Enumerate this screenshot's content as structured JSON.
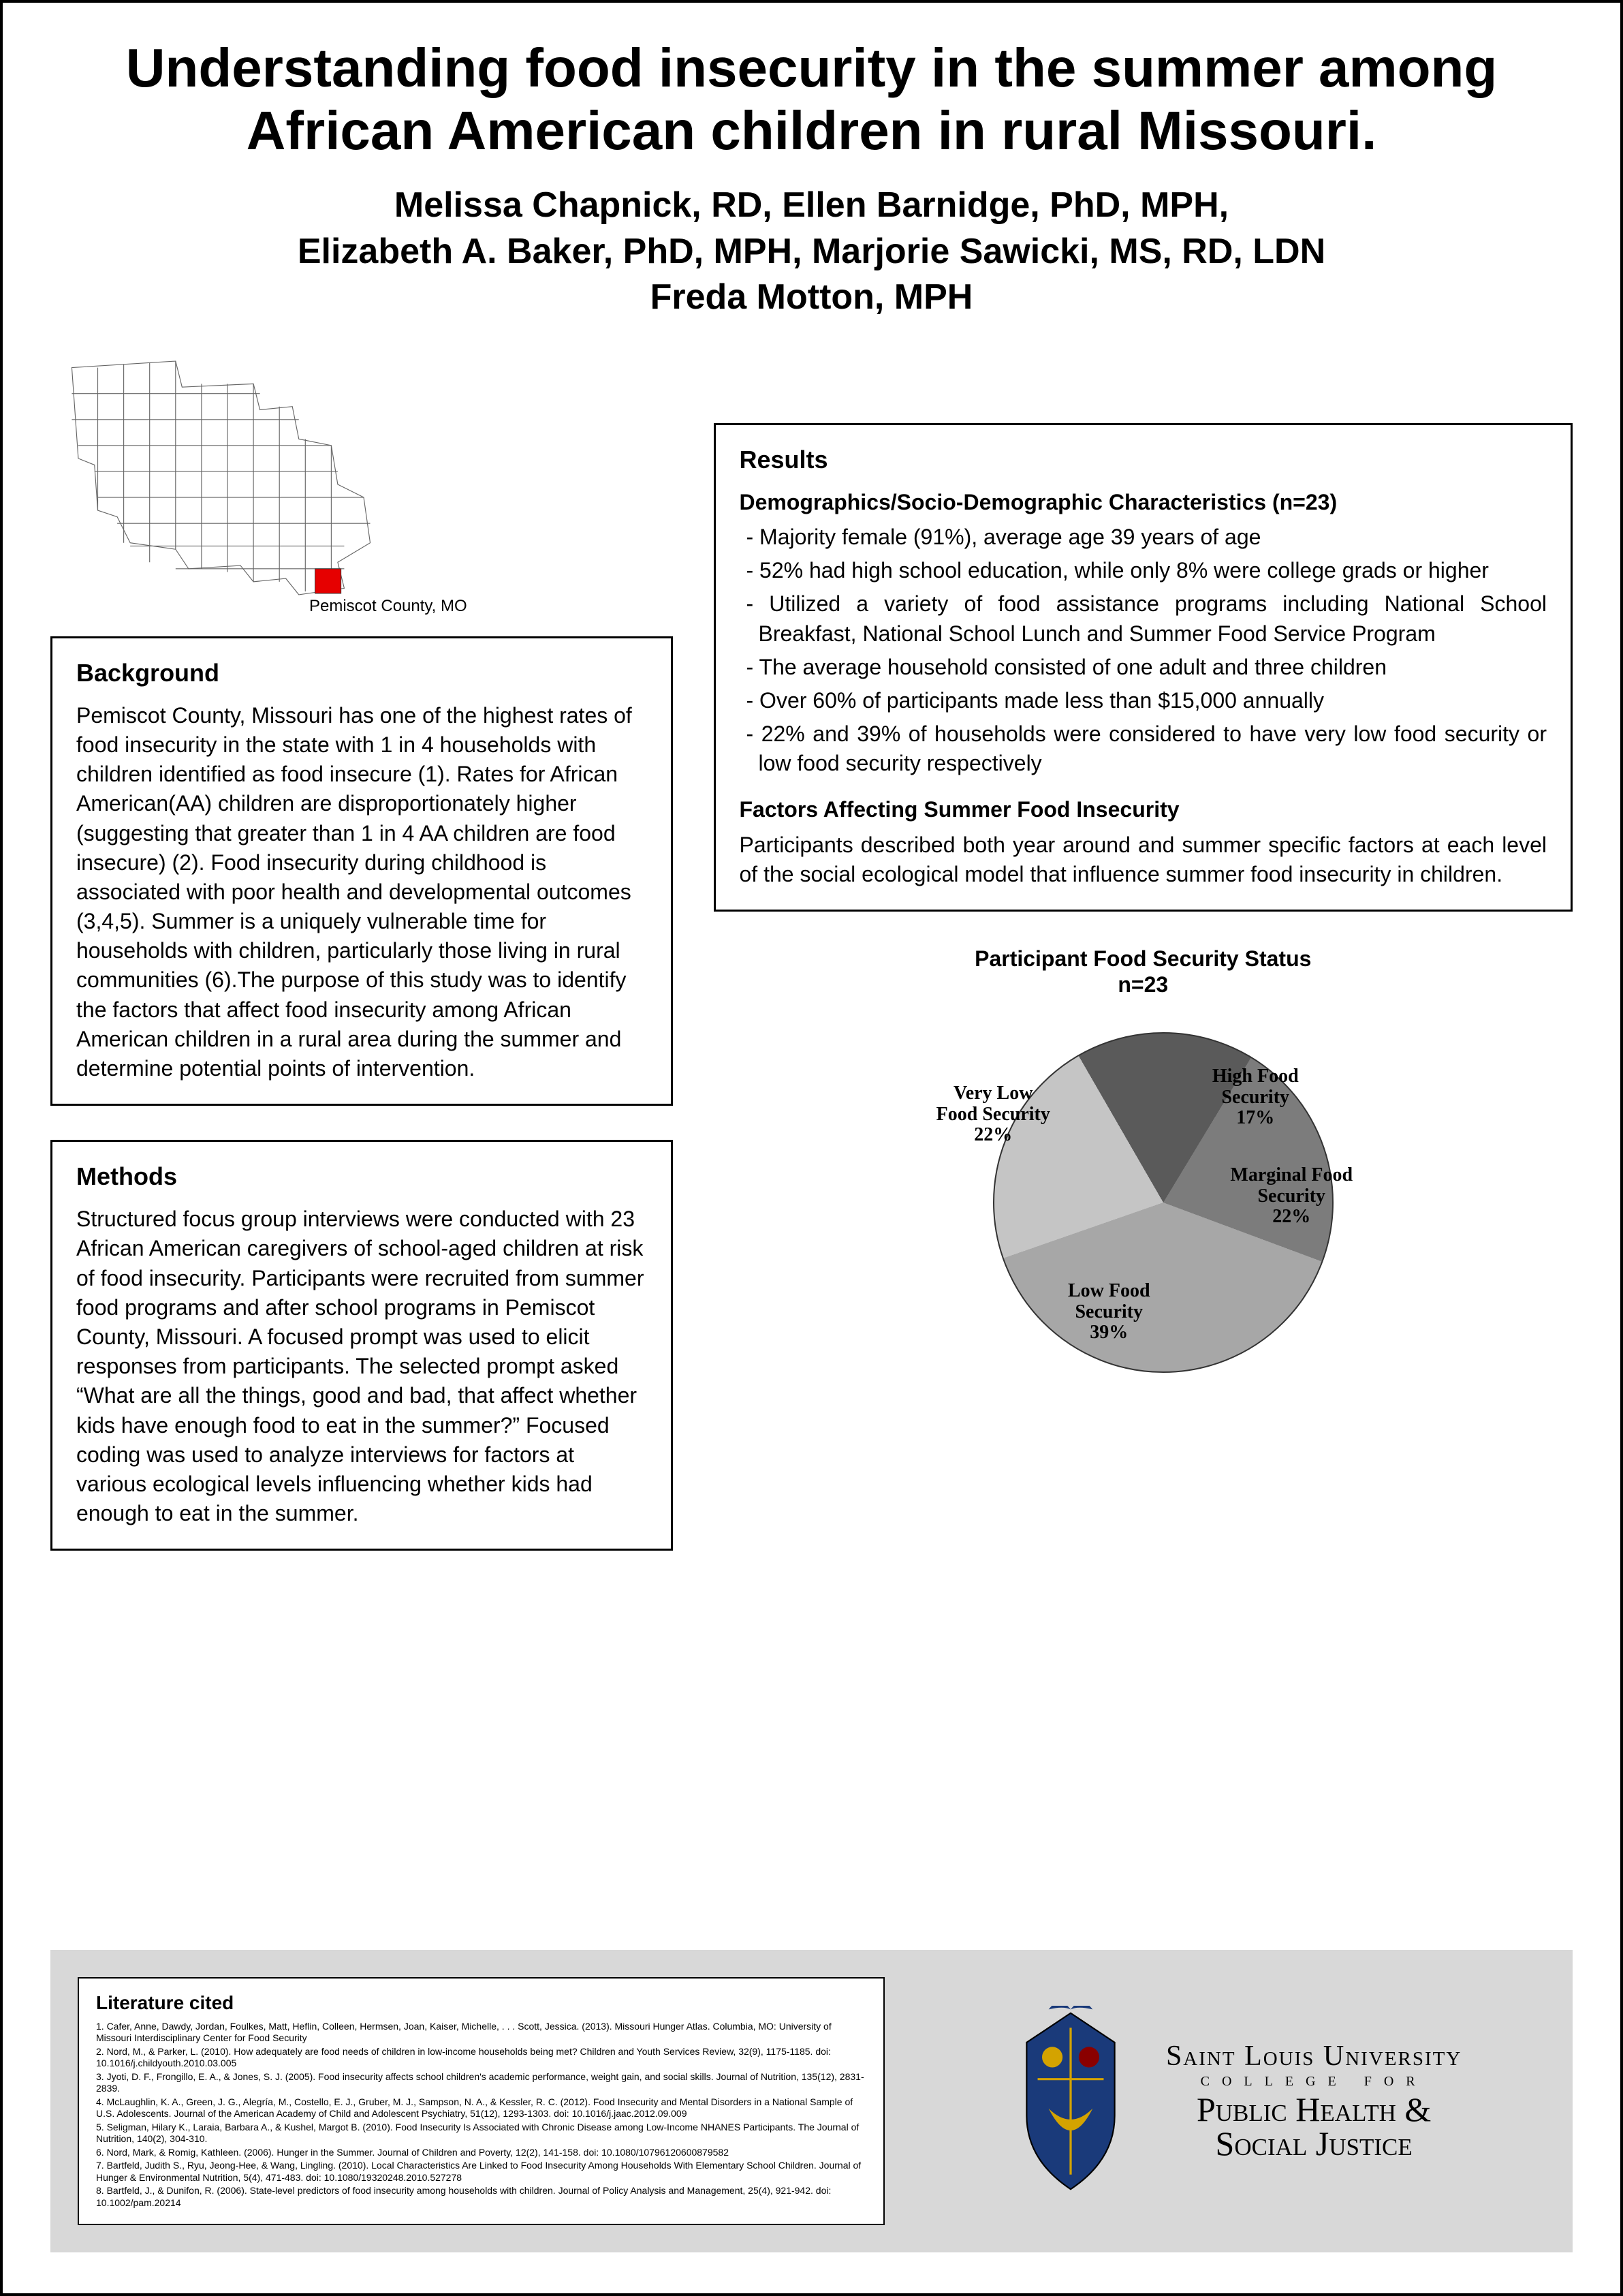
{
  "title_line1": "Understanding food insecurity in the summer among",
  "title_line2": "African American children in rural Missouri.",
  "authors_line1": "Melissa Chapnick, RD, Ellen Barnidge, PhD, MPH,",
  "authors_line2": "Elizabeth A. Baker, PhD, MPH, Marjorie Sawicki, MS, RD, LDN",
  "authors_line3": "Freda Motton, MPH",
  "map_caption": "Pemiscot County, MO",
  "map_highlight_color": "#e60000",
  "background": {
    "heading": "Background",
    "body": "Pemiscot County, Missouri has one of the highest rates of food insecurity in the state with 1 in 4 households with children identified as food insecure (1). Rates for African American(AA) children are disproportionately higher (suggesting that greater than  1 in 4 AA children are food insecure) (2). Food insecurity during childhood is associated with poor health and developmental outcomes (3,4,5). Summer is a uniquely vulnerable time for households with children, particularly those living in rural communities (6).The purpose of this study was to identify the factors that affect food insecurity among African American children in a rural area during the summer and determine potential points of intervention."
  },
  "methods": {
    "heading": "Methods",
    "body": "Structured focus group interviews were conducted with 23 African American caregivers of school-aged children at risk of food insecurity. Participants were recruited from summer food programs and after school programs in Pemiscot County, Missouri. A focused prompt was used to elicit responses from participants. The selected prompt asked “What are all the things, good and bad, that affect whether kids have enough food to eat in the summer?” Focused coding was used to analyze interviews for factors at various ecological levels influencing whether kids had enough to eat in the summer."
  },
  "results": {
    "heading": "Results",
    "demo_heading": "Demographics/Socio-Demographic Characteristics (n=23)",
    "demo_items": [
      "Majority female (91%), average age 39 years of age",
      "52% had high school education, while only 8% were college grads or higher",
      "Utilized a variety of food assistance programs including National School Breakfast, National School Lunch and Summer Food Service Program",
      "The average household  consisted  of one adult and three children",
      "Over 60% of participants made less than $15,000 annually",
      "22% and 39% of households were considered to have very low food security or low food security respectively"
    ],
    "factors_heading": "Factors Affecting Summer Food Insecurity",
    "factors_body": "Participants described both year around and summer specific factors at each level of the social ecological model that influence summer food insecurity in children."
  },
  "pie": {
    "title_line1": "Participant Food Security Status",
    "title_line2": "n=23",
    "background_color": "#ffffff",
    "slices": [
      {
        "label": "High Food Security",
        "pct": "17%",
        "value": 17,
        "color": "#5a5a5a"
      },
      {
        "label": "Marginal Food Security",
        "pct": "22%",
        "value": 22,
        "color": "#7c7c7c"
      },
      {
        "label": "Low Food Security",
        "pct": "39%",
        "value": 39,
        "color": "#a7a7a7"
      },
      {
        "label": "Very Low Food Security",
        "pct": "22%",
        "value": 22,
        "color": "#c5c5c5"
      }
    ]
  },
  "refs": {
    "heading": "Literature cited",
    "items": [
      "1. Cafer, Anne, Dawdy, Jordan, Foulkes, Matt, Heflin, Colleen, Hermsen, Joan, Kaiser, Michelle, . . . Scott, Jessica. (2013). Missouri Hunger Atlas. Columbia, MO: University of Missouri Interdisciplinary Center for Food Security",
      "2. Nord, M., & Parker, L. (2010). How adequately are food needs of children in low-income households being met? Children and Youth Services Review, 32(9), 1175-1185. doi: 10.1016/j.childyouth.2010.03.005",
      "3. Jyoti, D. F., Frongillo, E. A., & Jones, S. J. (2005). Food insecurity affects school children's academic performance, weight gain, and social skills. Journal of Nutrition, 135(12), 2831-2839.",
      "4. McLaughlin, K. A., Green, J. G., Alegría, M., Costello, E. J., Gruber, M. J., Sampson, N. A., & Kessler, R. C. (2012). Food Insecurity and Mental Disorders in a National Sample of U.S. Adolescents. Journal of the American Academy of Child and Adolescent Psychiatry, 51(12), 1293-1303. doi: 10.1016/j.jaac.2012.09.009",
      "5. Seligman, Hilary K., Laraia, Barbara A., & Kushel, Margot B. (2010). Food Insecurity Is Associated with Chronic Disease among Low-Income NHANES Participants. The Journal of Nutrition, 140(2), 304-310.",
      "6. Nord, Mark, & Romig, Kathleen. (2006). Hunger in the Summer. Journal of Children and Poverty, 12(2), 141-158. doi: 10.1080/10796120600879582",
      "7. Bartfeld, Judith S., Ryu, Jeong-Hee, & Wang, Lingling. (2010). Local Characteristics Are Linked to Food Insecurity Among Households With Elementary School Children. Journal of Hunger & Environmental Nutrition, 5(4), 471-483. doi: 10.1080/19320248.2010.527278",
      "8. Bartfeld, J., & Dunifon, R. (2006). State-level predictors of food insecurity among households with children. Journal of Policy Analysis and Management, 25(4), 921-942. doi: 10.1002/pam.20214"
    ]
  },
  "slu": {
    "name": "Saint Louis University",
    "college": "COLLEGE FOR",
    "dept1": "Public Health &",
    "dept2": "Social Justice",
    "logo_colors": {
      "shield": "#1a3a7a",
      "gold": "#d4a300",
      "red": "#8a0000"
    }
  }
}
